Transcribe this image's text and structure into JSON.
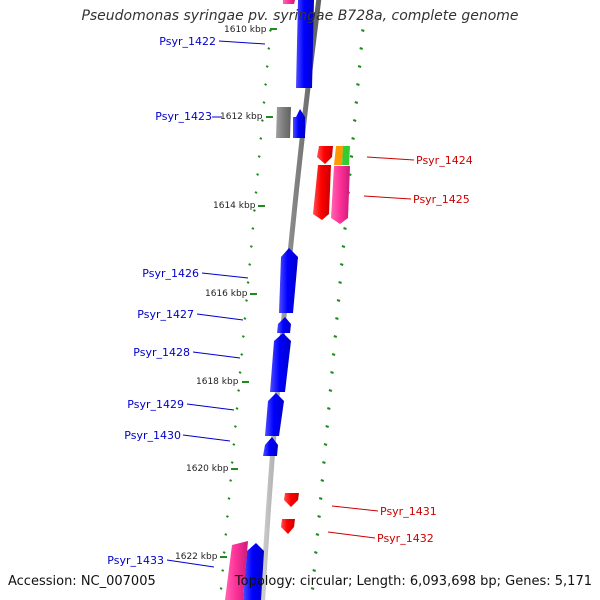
{
  "title": "Pseudomonas syringae pv. syringae B728a, complete genome",
  "footer": {
    "accession": "Accession: NC_007005",
    "summary": "Topology: circular; Length: 6,093,698 bp; Genes: 5,171"
  },
  "colors": {
    "backbone": "#8c8c8c",
    "tick": "#1e8c1e",
    "forward_gene": "#0000ff",
    "reverse_gene": "#ff0000",
    "pink_feature": "#ff3399",
    "gray_feature": "#808080",
    "orange_feature": "#ff9900",
    "green_feature": "#33cc33",
    "forward_label": "#0000cc",
    "reverse_label": "#cc0000"
  },
  "scale_labels": [
    "1610 kbp",
    "1612 kbp",
    "1614 kbp",
    "1616 kbp",
    "1618 kbp",
    "1620 kbp",
    "1622 kbp"
  ],
  "gene_labels": {
    "forward": [
      "Psyr_1422",
      "Psyr_1423",
      "Psyr_1426",
      "Psyr_1427",
      "Psyr_1428",
      "Psyr_1429",
      "Psyr_1430",
      "Psyr_1433"
    ],
    "reverse": [
      "Psyr_1424",
      "Psyr_1425",
      "Psyr_1431",
      "Psyr_1432"
    ]
  }
}
